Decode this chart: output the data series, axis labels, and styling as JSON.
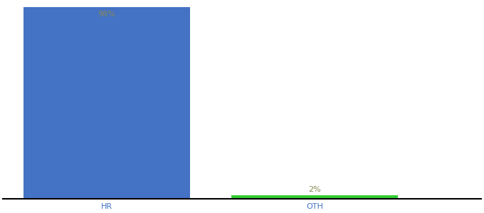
{
  "categories": [
    "HR",
    "OTH"
  ],
  "values": [
    98,
    2
  ],
  "bar_colors": [
    "#4472c4",
    "#33cc33"
  ],
  "label_colors": [
    "#888855",
    "#888855"
  ],
  "labels": [
    "98%",
    "2%"
  ],
  "ylim": [
    0,
    100
  ],
  "background_color": "#ffffff",
  "axis_line_color": "#000000",
  "tick_label_color": "#4472c4",
  "label_fontsize": 8,
  "tick_fontsize": 8,
  "bar_width": 0.8,
  "x_positions": [
    0,
    1
  ],
  "xlim": [
    -0.5,
    1.8
  ]
}
